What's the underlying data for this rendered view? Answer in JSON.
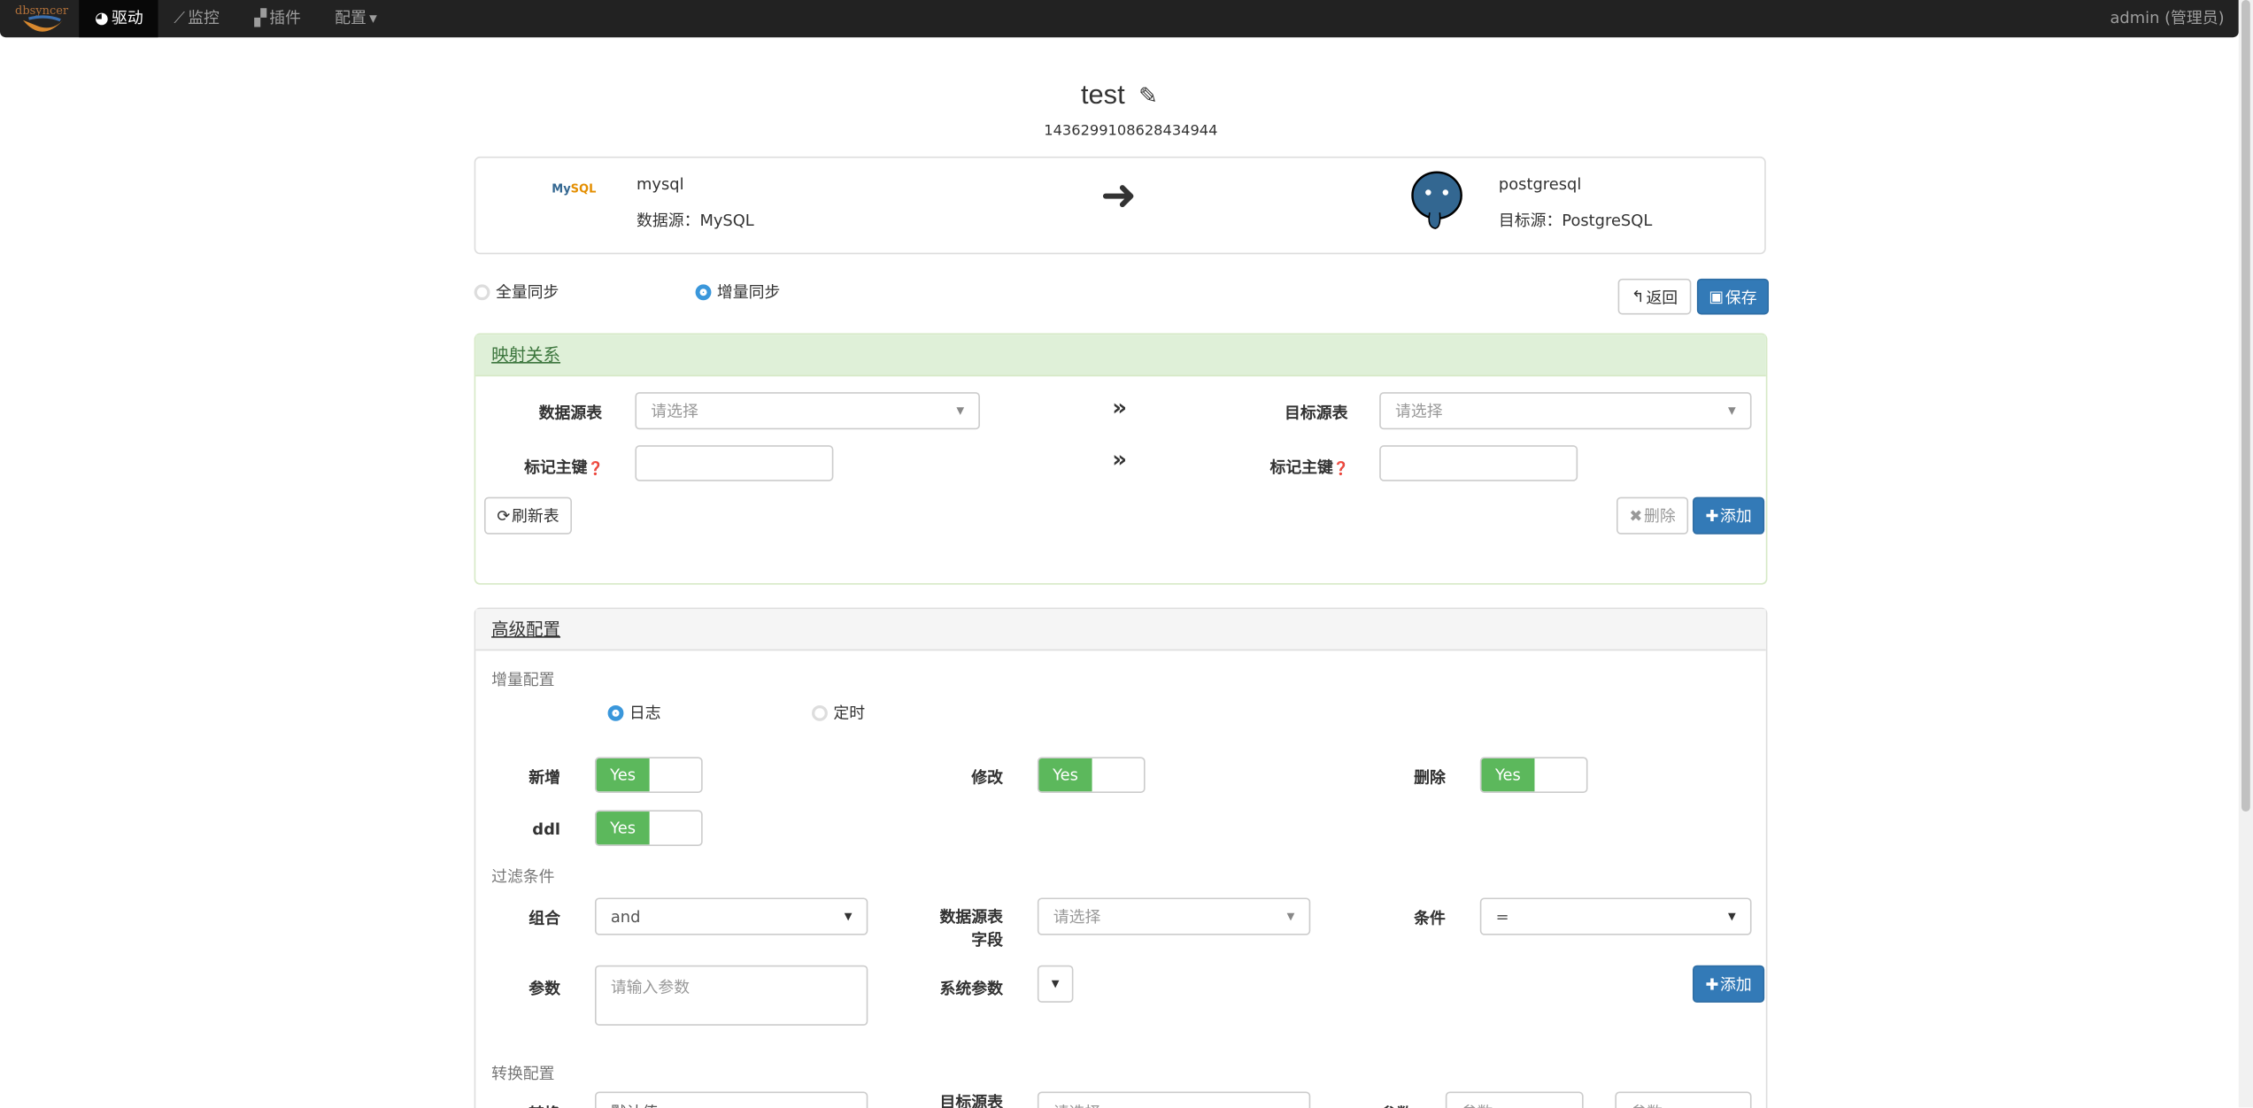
{
  "navbar": {
    "brand": "dbsyncer",
    "items": [
      {
        "label": "驱动",
        "icon": "dashboard-icon",
        "active": true
      },
      {
        "label": "监控",
        "icon": "line-chart-icon"
      },
      {
        "label": "插件",
        "icon": "puzzle-icon"
      },
      {
        "label": "配置",
        "icon": "caret-down-icon"
      }
    ],
    "user": "admin (管理员)"
  },
  "header": {
    "title": "test",
    "id": "1436299108628434944"
  },
  "connection": {
    "source_name": "mysql",
    "source_type": "数据源：MySQL",
    "target_name": "postgresql",
    "target_type": "目标源：PostgreSQL"
  },
  "sync_mode": {
    "options": [
      "全量同步",
      "增量同步"
    ],
    "selected": "增量同步"
  },
  "actions": {
    "back": "返回",
    "save": "保存"
  },
  "mapping": {
    "title": "映射关系",
    "source_table_label": "数据源表",
    "target_table_label": "目标源表",
    "placeholder": "请选择",
    "pk_label": "标记主键",
    "refresh": "刷新表",
    "delete": "删除",
    "add": "添加"
  },
  "advanced": {
    "title": "高级配置",
    "incremental_label": "增量配置",
    "inc_options": [
      "日志",
      "定时"
    ],
    "inc_selected": "日志",
    "toggles": [
      {
        "label": "新增",
        "value": "Yes"
      },
      {
        "label": "修改",
        "value": "Yes"
      },
      {
        "label": "删除",
        "value": "Yes"
      },
      {
        "label": "ddl",
        "value": "Yes"
      }
    ],
    "filter_label": "过滤条件",
    "combine_label": "组合",
    "combine_value": "and",
    "field_label": "数据源表字段",
    "field_placeholder": "请选择",
    "condition_label": "条件",
    "condition_value": "=",
    "param_label": "参数",
    "param_placeholder": "请输入参数",
    "sys_param_label": "系统参数",
    "add": "添加",
    "convert_label": "转换配置",
    "convert_row": {
      "label": "转换",
      "value": "默认值",
      "target_label": "目标源表",
      "target_placeholder": "请选择",
      "param_label": "参数",
      "param_placeholder_1": "参数",
      "param_placeholder_2": "参数"
    }
  },
  "colors": {
    "primary": "#337ab7",
    "success": "#5cb85c",
    "navbar": "#222222",
    "mapping_header": "#dff0d8"
  }
}
